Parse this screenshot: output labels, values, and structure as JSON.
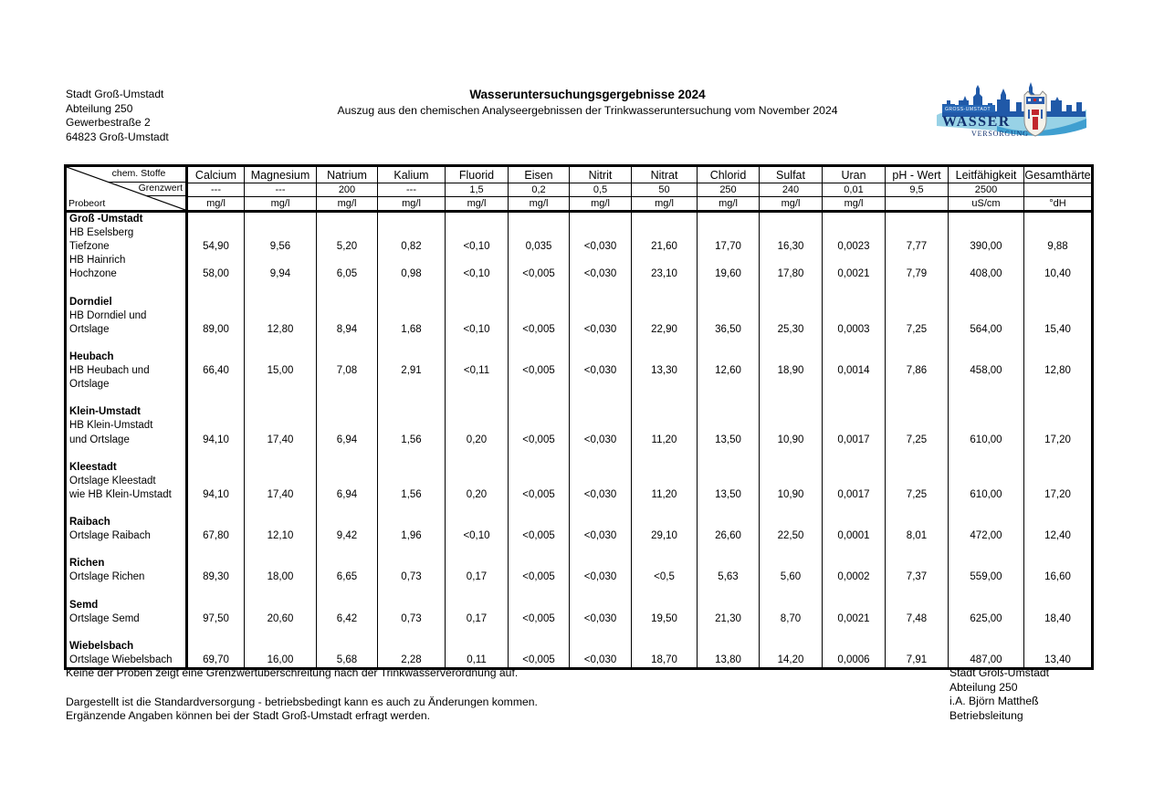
{
  "page": {
    "sender": [
      "Stadt Groß-Umstadt",
      "Abteilung 250",
      "Gewerbestraße 2",
      "64823 Groß-Umstadt"
    ],
    "title": "Wasseruntersuchungsgergebnisse 2024",
    "subtitle": "Auszug aus den chemischen Analyseergebnissen der Trinkwasseruntersuchung vom November 2024"
  },
  "logo": {
    "city": "GROSS-UMSTADT",
    "word1": "WASSER",
    "word2": "VERSORGUNG",
    "colors": {
      "skyline_blue": "#2059a8",
      "light_wave": "#98d2e6",
      "mid_wave": "#3f9fd0",
      "navy": "#11306e",
      "banner": "#2566b5",
      "shield_red": "#c1272d"
    }
  },
  "table": {
    "corner": {
      "top_label": "chem. Stoffe",
      "mid_label": "Grenzwert",
      "bottom_label": "Probeort"
    },
    "columns": [
      "Calcium",
      "Magnesium",
      "Natrium",
      "Kalium",
      "Fluorid",
      "Eisen",
      "Nitrit",
      "Nitrat",
      "Chlorid",
      "Sulfat",
      "Uran",
      "pH - Wert",
      "Leitfähigkeit",
      "Gesamthärte"
    ],
    "grenzwert": [
      "---",
      "---",
      "200",
      "---",
      "1,5",
      "0,2",
      "0,5",
      "50",
      "250",
      "240",
      "0,01",
      "9,5",
      "2500",
      ""
    ],
    "units": [
      "mg/l",
      "mg/l",
      "mg/l",
      "mg/l",
      "mg/l",
      "mg/l",
      "mg/l",
      "mg/l",
      "mg/l",
      "mg/l",
      "mg/l",
      "",
      "uS/cm",
      "°dH"
    ],
    "rows": [
      {
        "label": "Groß -Umstadt",
        "bold": true
      },
      {
        "label": "HB Eselsberg"
      },
      {
        "label": "Tiefzone",
        "values": [
          "54,90",
          "9,56",
          "5,20",
          "0,82",
          "<0,10",
          "0,035",
          "<0,030",
          "21,60",
          "17,70",
          "16,30",
          "0,0023",
          "7,77",
          "390,00",
          "9,88"
        ]
      },
      {
        "label": "HB Hainrich"
      },
      {
        "label": "Hochzone",
        "values": [
          "58,00",
          "9,94",
          "6,05",
          "0,98",
          "<0,10",
          "<0,005",
          "<0,030",
          "23,10",
          "19,60",
          "17,80",
          "0,0021",
          "7,79",
          "408,00",
          "10,40"
        ]
      },
      {
        "label": ""
      },
      {
        "label": "Dorndiel",
        "bold": true
      },
      {
        "label": "HB Dorndiel und"
      },
      {
        "label": "Ortslage",
        "values": [
          "89,00",
          "12,80",
          "8,94",
          "1,68",
          "<0,10",
          "<0,005",
          "<0,030",
          "22,90",
          "36,50",
          "25,30",
          "0,0003",
          "7,25",
          "564,00",
          "15,40"
        ]
      },
      {
        "label": ""
      },
      {
        "label": "Heubach",
        "bold": true
      },
      {
        "label": "HB Heubach und",
        "values": [
          "66,40",
          "15,00",
          "7,08",
          "2,91",
          "<0,11",
          "<0,005",
          "<0,030",
          "13,30",
          "12,60",
          "18,90",
          "0,0014",
          "7,86",
          "458,00",
          "12,80"
        ]
      },
      {
        "label": "Ortslage"
      },
      {
        "label": ""
      },
      {
        "label": "Klein-Umstadt",
        "bold": true
      },
      {
        "label": "HB Klein-Umstadt"
      },
      {
        "label": "und Ortslage",
        "values": [
          "94,10",
          "17,40",
          "6,94",
          "1,56",
          "0,20",
          "<0,005",
          "<0,030",
          "11,20",
          "13,50",
          "10,90",
          "0,0017",
          "7,25",
          "610,00",
          "17,20"
        ]
      },
      {
        "label": ""
      },
      {
        "label": "Kleestadt",
        "bold": true
      },
      {
        "label": "Ortslage Kleestadt"
      },
      {
        "label": "wie HB Klein-Umstadt",
        "values": [
          "94,10",
          "17,40",
          "6,94",
          "1,56",
          "0,20",
          "<0,005",
          "<0,030",
          "11,20",
          "13,50",
          "10,90",
          "0,0017",
          "7,25",
          "610,00",
          "17,20"
        ]
      },
      {
        "label": ""
      },
      {
        "label": "Raibach",
        "bold": true
      },
      {
        "label": "Ortslage Raibach",
        "values": [
          "67,80",
          "12,10",
          "9,42",
          "1,96",
          "<0,10",
          "<0,005",
          "<0,030",
          "29,10",
          "26,60",
          "22,50",
          "0,0001",
          "8,01",
          "472,00",
          "12,40"
        ]
      },
      {
        "label": ""
      },
      {
        "label": "Richen",
        "bold": true
      },
      {
        "label": "Ortslage Richen",
        "values": [
          "89,30",
          "18,00",
          "6,65",
          "0,73",
          "0,17",
          "<0,005",
          "<0,030",
          "<0,5",
          "5,63",
          "5,60",
          "0,0002",
          "7,37",
          "559,00",
          "16,60"
        ]
      },
      {
        "label": ""
      },
      {
        "label": "Semd",
        "bold": true
      },
      {
        "label": "Ortslage Semd",
        "values": [
          "97,50",
          "20,60",
          "6,42",
          "0,73",
          "0,17",
          "<0,005",
          "<0,030",
          "19,50",
          "21,30",
          "8,70",
          "0,0021",
          "7,48",
          "625,00",
          "18,40"
        ]
      },
      {
        "label": ""
      },
      {
        "label": "Wiebelsbach",
        "bold": true
      },
      {
        "label": "Ortslage Wiebelsbach",
        "values": [
          "69,70",
          "16,00",
          "5,68",
          "2,28",
          "0,11",
          "<0,005",
          "<0,030",
          "18,70",
          "13,80",
          "14,20",
          "0,0006",
          "7,91",
          "487,00",
          "13,40"
        ]
      }
    ]
  },
  "footer": {
    "notes": [
      "Keine der Proben zeigt eine Grenzwertüberschreitung nach der Trinkwasserverordnung auf.",
      "Dargestellt ist die Standardversorgung - betriebsbedingt kann es auch zu Änderungen kommen.",
      "Ergänzende Angaben können bei der Stadt Groß-Umstadt erfragt werden."
    ],
    "signature": [
      "Stadt Groß-Umstadt",
      "Abteilung 250",
      "i.A. Björn Mattheß",
      "Betriebsleitung"
    ]
  }
}
